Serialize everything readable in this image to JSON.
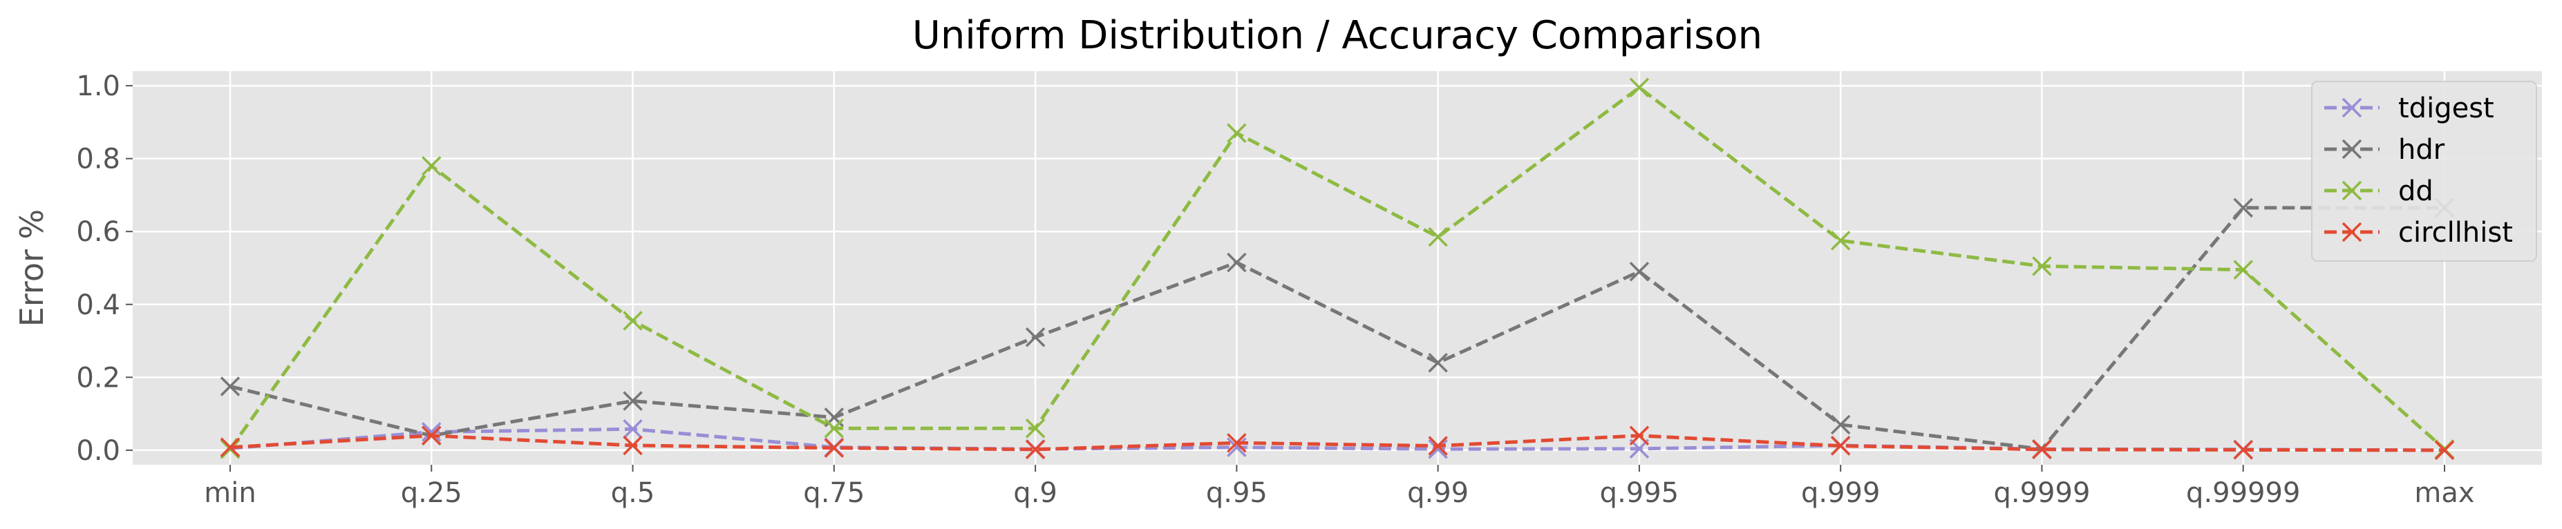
{
  "chart_data": {
    "type": "line",
    "title": "Uniform Distribution / Accuracy Comparison",
    "xlabel": "",
    "ylabel": "Error %",
    "categories": [
      "min",
      "q.25",
      "q.5",
      "q.75",
      "q.9",
      "q.95",
      "q.99",
      "q.995",
      "q.999",
      "q.9999",
      "q.99999",
      "max"
    ],
    "yticks": [
      "0.0",
      "0.2",
      "0.4",
      "0.6",
      "0.8",
      "1.0"
    ],
    "ylim": [
      -0.04,
      1.04
    ],
    "grid": true,
    "legend_position": "top-right",
    "series": [
      {
        "name": "tdigest",
        "color": "#988ED5",
        "values": [
          0.005,
          0.05,
          0.058,
          0.008,
          0.003,
          0.008,
          0.003,
          0.004,
          0.013,
          0.003,
          0.002,
          0.0
        ]
      },
      {
        "name": "hdr",
        "color": "#777777",
        "values": [
          0.175,
          0.04,
          0.135,
          0.09,
          0.31,
          0.515,
          0.24,
          0.49,
          0.07,
          0.003,
          0.665,
          0.665
        ]
      },
      {
        "name": "dd",
        "color": "#8EBA42",
        "values": [
          0.003,
          0.78,
          0.355,
          0.06,
          0.06,
          0.87,
          0.585,
          0.995,
          0.575,
          0.505,
          0.495,
          0.003
        ]
      },
      {
        "name": "circllhist",
        "color": "#E24A33",
        "values": [
          0.008,
          0.04,
          0.013,
          0.006,
          0.002,
          0.02,
          0.012,
          0.04,
          0.012,
          0.002,
          0.001,
          0.0
        ]
      }
    ]
  }
}
